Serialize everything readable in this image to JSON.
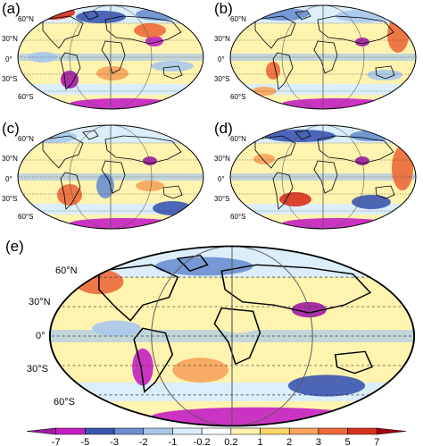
{
  "panels": [
    {
      "id": "a",
      "label": "(a)",
      "lat_labels": [
        "60°N",
        "30°N",
        "0°",
        "30°S",
        "60°S"
      ]
    },
    {
      "id": "b",
      "label": "(b)",
      "lat_labels": [
        "60°N",
        "30°N",
        "0°",
        "30°S",
        "60°S"
      ]
    },
    {
      "id": "c",
      "label": "(c)",
      "lat_labels": [
        "60°N",
        "30°N",
        "0°",
        "30°S",
        "60°S"
      ]
    },
    {
      "id": "d",
      "label": "(d)",
      "lat_labels": [
        "60°N",
        "30°N",
        "0°",
        "30°S",
        "60°S"
      ]
    },
    {
      "id": "e",
      "label": "(e)",
      "lat_labels": [
        "60°N",
        "30°N",
        "0°",
        "30°S",
        "60°S"
      ]
    }
  ],
  "colorbar": {
    "ticks": [
      "-7",
      "-5",
      "-3",
      "-2",
      "-1",
      "-0.2",
      "0.2",
      "1",
      "2",
      "3",
      "5",
      "7"
    ],
    "colors": [
      "#a21aa6",
      "#c51fc4",
      "#3b56b0",
      "#6a8fd0",
      "#a8c8ea",
      "#dbeefa",
      "#ffffff",
      "#fff3b0",
      "#ffd56a",
      "#f7a35c",
      "#ec6a3a",
      "#d7301f",
      "#a3000f"
    ]
  }
}
